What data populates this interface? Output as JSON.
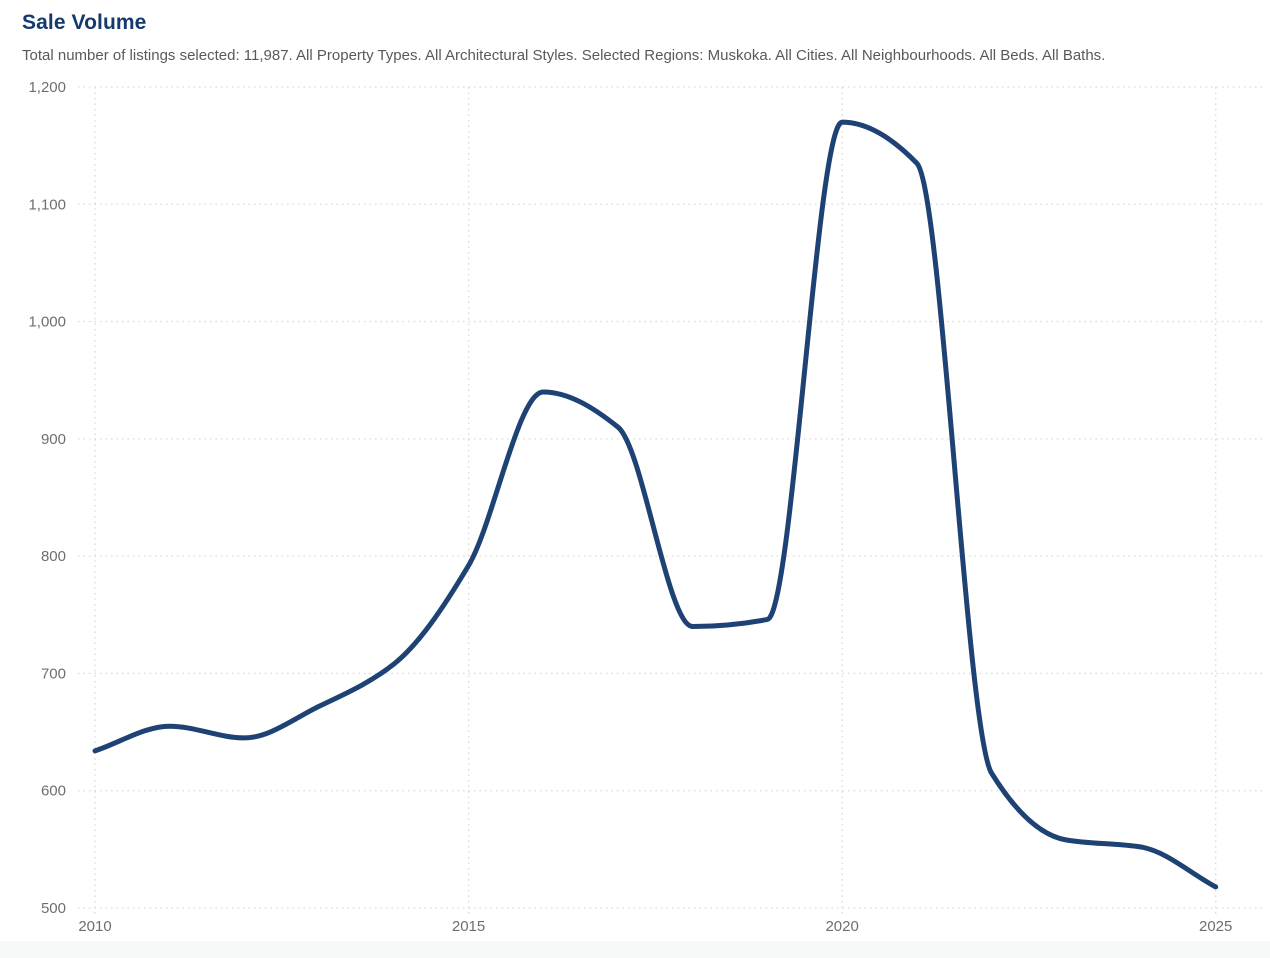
{
  "page": {
    "title": "Sale Volume",
    "subtitle": "Total number of listings selected: 11,987. All Property Types. All Architectural Styles. Selected Regions: Muskoka. All Cities. All Neighbourhoods. All Beds. All Baths."
  },
  "colors": {
    "title": "#153a6e",
    "subtitle": "#58595b",
    "tick_label": "#6d6e70",
    "gridline": "#d7d8d9",
    "line": "#1e4273",
    "footer_band": "#f7f8f8",
    "background": "#ffffff"
  },
  "chart_data": {
    "type": "line",
    "title": "Sale Volume",
    "subtitle": "Total number of listings selected: 11,987. All Property Types. All Architectural Styles. Selected Regions: Muskoka. All Cities. All Neighbourhoods. All Beds. All Baths.",
    "series": [
      {
        "name": "Sale Volume",
        "x": [
          2010,
          2011,
          2012,
          2013,
          2014,
          2015,
          2016,
          2017,
          2018,
          2019,
          2020,
          2021,
          2022,
          2023,
          2024,
          2025
        ],
        "values": [
          634,
          655,
          645,
          672,
          708,
          792,
          940,
          910,
          740,
          746,
          1170,
          1135,
          615,
          558,
          552,
          518
        ]
      }
    ],
    "xlabel": "",
    "ylabel": "",
    "xlim": [
      2010,
      2025
    ],
    "ylim": [
      500,
      1200
    ],
    "xticks": {
      "values": [
        2010,
        2015,
        2020,
        2025
      ],
      "labels": [
        "2010",
        "2015",
        "2020",
        "2025"
      ]
    },
    "yticks": {
      "values": [
        500,
        600,
        700,
        800,
        900,
        1000,
        1100,
        1200
      ],
      "labels": [
        "500",
        "600",
        "700",
        "800",
        "900",
        "1,000",
        "1,100",
        "1,200"
      ]
    },
    "grid": "dotted-both",
    "legend": "none",
    "curve": "monotone-spline",
    "line_color": "#1e4273",
    "line_width": 5
  }
}
